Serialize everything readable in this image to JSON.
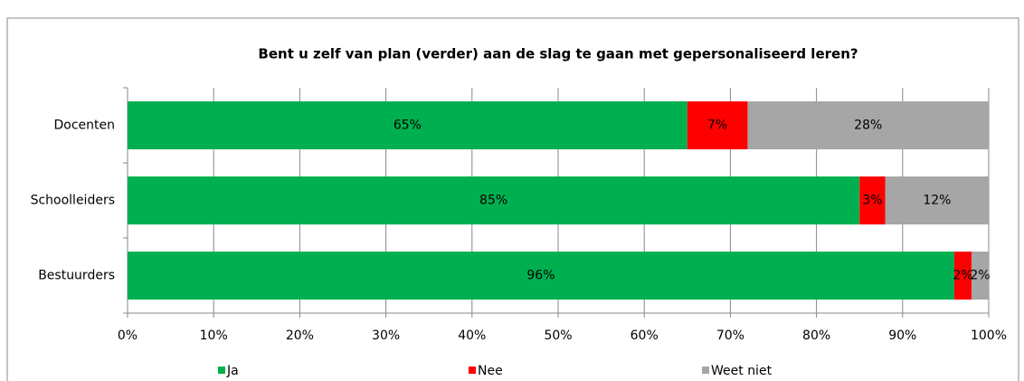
{
  "chart_data": {
    "type": "stacked-bar-horizontal",
    "title": "Bent u zelf van plan (verder) aan de slag te gaan met gepersonaliseerd leren?",
    "categories": [
      "Docenten",
      "Schoolleiders",
      "Bestuurders"
    ],
    "series": [
      {
        "name": "Ja",
        "color": "#00b050",
        "values": [
          65,
          85,
          96
        ],
        "value_labels": [
          "65%",
          "85%",
          "96%"
        ]
      },
      {
        "name": "Nee",
        "color": "#ff0000",
        "values": [
          7,
          3,
          2
        ],
        "value_labels": [
          "7%",
          "3%",
          "2%"
        ]
      },
      {
        "name": "Weet niet",
        "color": "#a6a6a6",
        "values": [
          28,
          12,
          2
        ],
        "value_labels": [
          "28%",
          "12%",
          "2%"
        ]
      }
    ],
    "xlim": [
      0,
      100
    ],
    "xticks": [
      {
        "value": 0,
        "label": "0%"
      },
      {
        "value": 10,
        "label": "10%"
      },
      {
        "value": 20,
        "label": "20%"
      },
      {
        "value": 30,
        "label": "30%"
      },
      {
        "value": 40,
        "label": "40%"
      },
      {
        "value": 50,
        "label": "50%"
      },
      {
        "value": 60,
        "label": "60%"
      },
      {
        "value": 70,
        "label": "70%"
      },
      {
        "value": 80,
        "label": "80%"
      },
      {
        "value": 90,
        "label": "90%"
      },
      {
        "value": 100,
        "label": "100%"
      }
    ],
    "grid": true,
    "legend": "bottom"
  }
}
